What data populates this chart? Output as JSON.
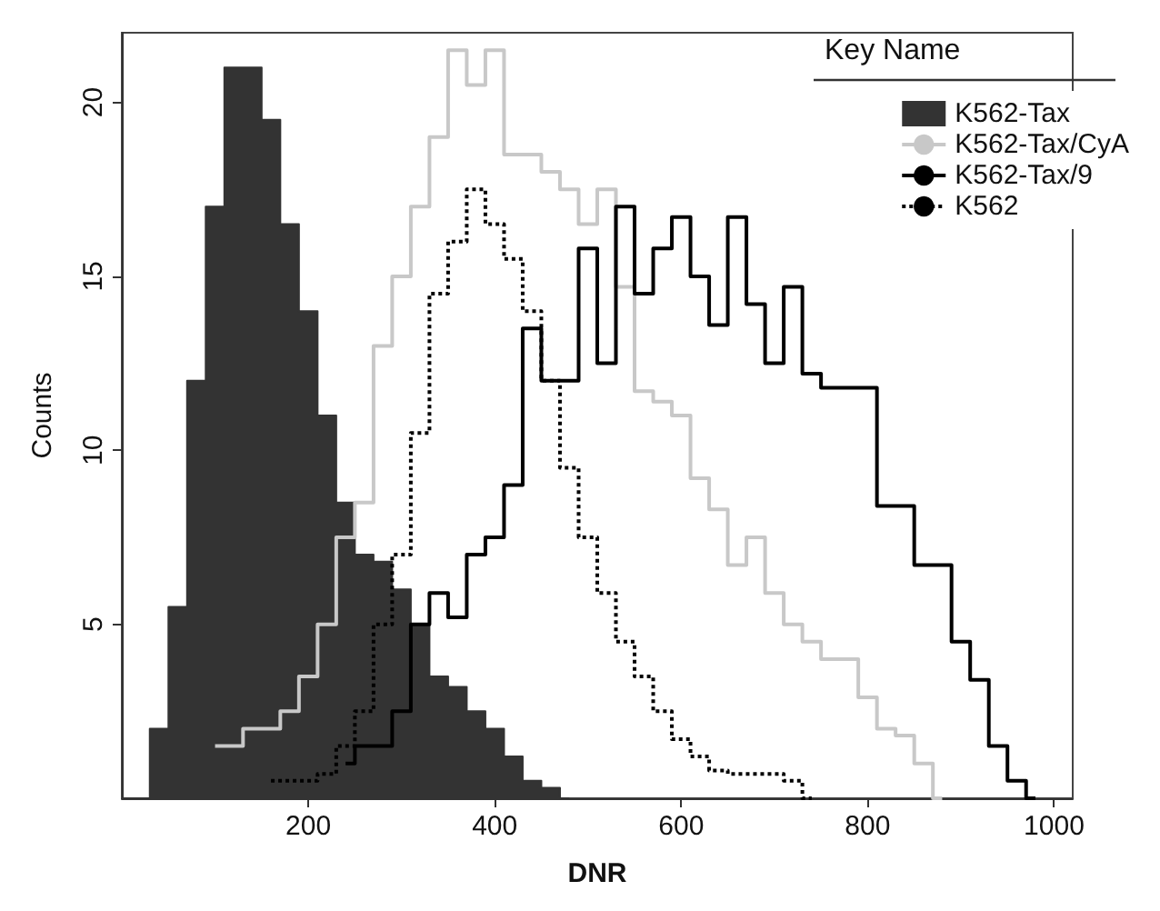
{
  "chart_data": {
    "type": "step",
    "xlabel": "DNR",
    "ylabel": "Counts",
    "legend_title": "Key Name",
    "legend": "top right",
    "xlim": [
      0,
      1020
    ],
    "xticks": [
      200,
      400,
      600,
      800,
      1000
    ],
    "ylim": [
      0,
      22
    ],
    "yticks": [
      5,
      10,
      15,
      20
    ],
    "grid": false,
    "series": [
      {
        "name": "K562-Tax",
        "type": "area",
        "color": "#333333",
        "x": [
          0,
          20,
          40,
          60,
          80,
          100,
          120,
          140,
          160,
          180,
          200,
          220,
          240,
          260,
          280,
          300,
          320,
          340,
          360,
          380,
          400,
          420,
          440,
          460,
          480
        ],
        "values": [
          0,
          0,
          2,
          5.5,
          12,
          17,
          21,
          21,
          19.5,
          16.5,
          14,
          11,
          8.5,
          7,
          6.8,
          6,
          5,
          3.5,
          3.2,
          2.5,
          2,
          1.2,
          0.5,
          0.3,
          0
        ]
      },
      {
        "name": "K562-Tax/CyA",
        "color": "#c8c8c8",
        "line_style": "solid",
        "x": [
          100,
          120,
          140,
          160,
          180,
          200,
          220,
          240,
          260,
          280,
          300,
          320,
          340,
          360,
          380,
          400,
          420,
          440,
          460,
          480,
          500,
          520,
          540,
          560,
          580,
          600,
          620,
          640,
          660,
          680,
          700,
          720,
          740,
          760,
          780,
          800,
          820,
          840,
          860,
          880
        ],
        "values": [
          1.5,
          1.5,
          2,
          2,
          2.5,
          3.5,
          5,
          7.5,
          8.5,
          13,
          15,
          17,
          19,
          21.5,
          20.5,
          21.5,
          18.5,
          18.5,
          18,
          17.5,
          16.5,
          17.5,
          14.7,
          11.7,
          11.4,
          11,
          9.2,
          8.3,
          6.7,
          7.5,
          5.9,
          5,
          4.5,
          4,
          4,
          2.9,
          2,
          1.8,
          1,
          0
        ]
      },
      {
        "name": "K562-Tax/9",
        "color": "#000000",
        "line_style": "solid",
        "x": [
          240,
          260,
          280,
          300,
          320,
          340,
          360,
          380,
          400,
          420,
          440,
          460,
          480,
          500,
          520,
          540,
          560,
          580,
          600,
          620,
          640,
          660,
          680,
          700,
          720,
          740,
          760,
          780,
          800,
          820,
          840,
          860,
          880,
          900,
          920,
          940,
          960,
          980
        ],
        "values": [
          1,
          1.5,
          1.5,
          2.5,
          5,
          5.9,
          5.2,
          7,
          7.5,
          9,
          13.5,
          12,
          12,
          15.8,
          12.5,
          17,
          14.5,
          15.8,
          16.7,
          15,
          13.6,
          16.7,
          14.2,
          12.5,
          14.7,
          12.2,
          11.8,
          11.8,
          11.8,
          8.4,
          8.4,
          6.7,
          6.7,
          4.5,
          3.4,
          1.5,
          0.5,
          0
        ]
      },
      {
        "name": "K562",
        "color": "#000000",
        "line_style": "dotted",
        "x": [
          160,
          180,
          200,
          220,
          240,
          260,
          280,
          300,
          320,
          340,
          360,
          380,
          400,
          420,
          440,
          460,
          480,
          500,
          520,
          540,
          560,
          580,
          600,
          620,
          640,
          660,
          680,
          700,
          720,
          740
        ],
        "values": [
          0.5,
          0.5,
          0.5,
          0.7,
          1.5,
          2.5,
          5,
          7,
          10.5,
          14.5,
          16,
          17.5,
          16.5,
          15.5,
          14,
          12,
          9.5,
          7.5,
          5.9,
          4.5,
          3.5,
          2.5,
          1.7,
          1.2,
          0.8,
          0.7,
          0.7,
          0.7,
          0.5,
          0
        ]
      }
    ]
  }
}
